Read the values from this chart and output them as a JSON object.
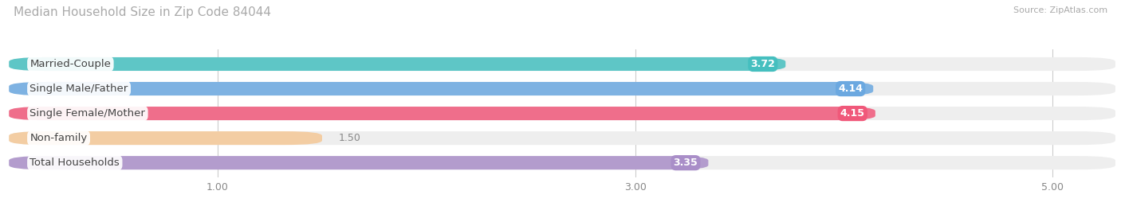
{
  "title": "Median Household Size in Zip Code 84044",
  "source": "Source: ZipAtlas.com",
  "categories": [
    "Married-Couple",
    "Single Male/Father",
    "Single Female/Mother",
    "Non-family",
    "Total Households"
  ],
  "values": [
    3.72,
    4.14,
    4.15,
    1.5,
    3.35
  ],
  "bar_colors": [
    "#45BFBF",
    "#6BA8E0",
    "#F0587A",
    "#F5C896",
    "#A98EC8"
  ],
  "value_bg_colors": [
    "#45BFBF",
    "#6BA8E0",
    "#F0587A",
    "#F5C896",
    "#A98EC8"
  ],
  "background_color": "#ffffff",
  "bar_bg_color": "#eeeeee",
  "xmin": 0.0,
  "xmax": 5.3,
  "xticks": [
    1.0,
    3.0,
    5.0
  ],
  "xtick_labels": [
    "1.00",
    "3.00",
    "5.00"
  ],
  "title_fontsize": 11,
  "label_fontsize": 9.5,
  "value_fontsize": 9
}
